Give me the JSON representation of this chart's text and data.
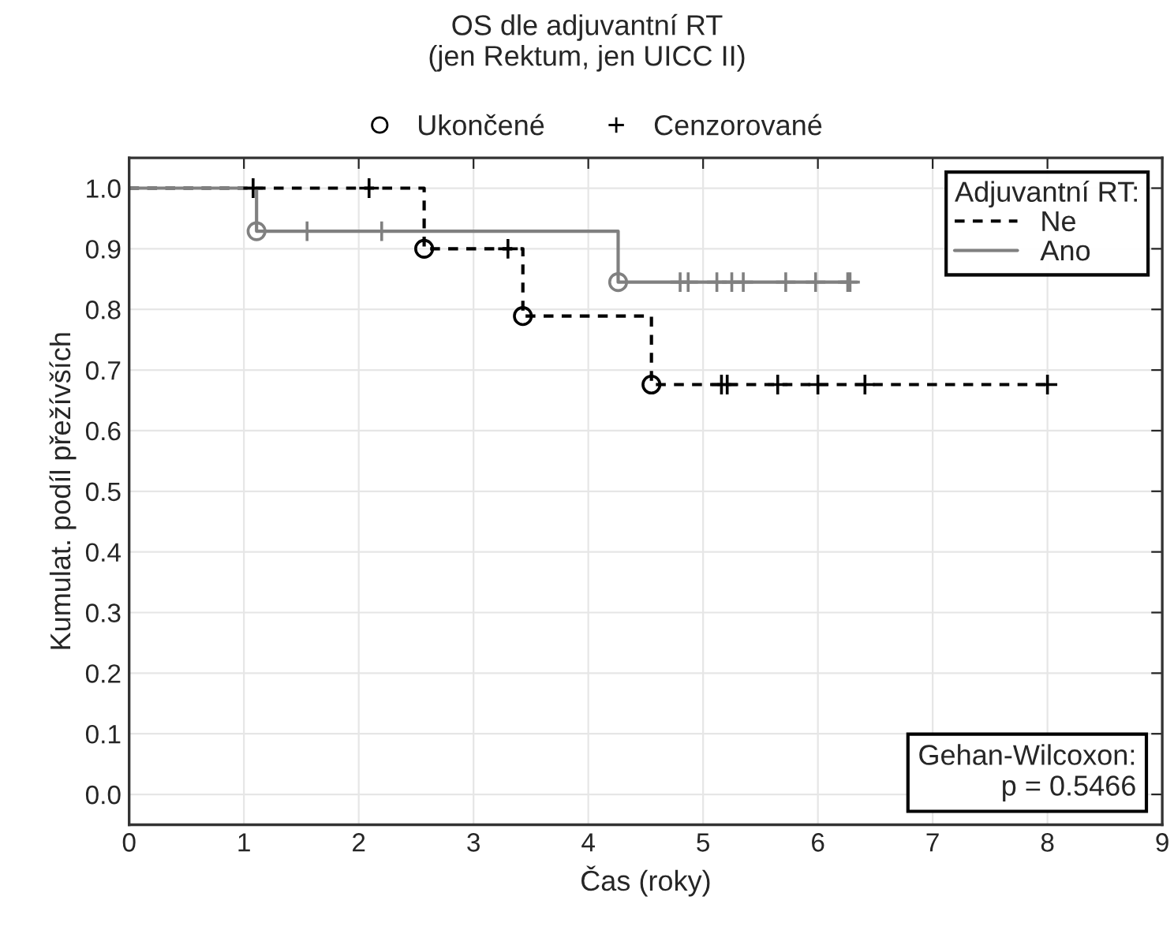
{
  "chart_data": {
    "type": "step",
    "title": "OS dle adjuvantní RT\n(jen Rektum, jen UICC II)",
    "xlabel": "Čas (roky)",
    "ylabel": "Kumulat. podíl přežívších",
    "legend_title": "Adjuvantní RT:",
    "series": [
      {
        "name": "Ne",
        "color": "#000000",
        "line_style": "dashed",
        "marker": "none",
        "x": [
          0,
          2.57,
          3.43,
          4.55,
          8.0
        ],
        "values": [
          1.0,
          0.9,
          0.789,
          0.676,
          0.676
        ]
      },
      {
        "name": "Ano",
        "color": "#808080",
        "line_style": "solid",
        "marker": "none",
        "x": [
          0,
          1.11,
          4.26,
          6.28
        ],
        "values": [
          1.0,
          0.929,
          0.845,
          0.845
        ]
      },
      {
        "name": "Ukončené",
        "type": "scatter",
        "color": "#000000",
        "marker": "circle",
        "x": [
          2.57,
          3.43,
          4.55
        ],
        "values": [
          0.9,
          0.789,
          0.676
        ]
      },
      {
        "name": "Cenzorované",
        "type": "scatter",
        "color": "#000000",
        "marker": "cross",
        "x": [
          1.08,
          2.09,
          3.3,
          5.16,
          5.21,
          5.65,
          6.0,
          6.41,
          8.0
        ],
        "values": [
          1.0,
          1.0,
          0.9,
          0.676,
          0.676,
          0.676,
          0.676,
          0.676,
          0.676
        ]
      },
      {
        "type": "scatter",
        "color": "#808080",
        "marker": "circle",
        "x": [
          1.11,
          4.26
        ],
        "values": [
          0.929,
          0.845
        ]
      },
      {
        "type": "scatter",
        "color": "#808080",
        "marker": "cross",
        "x": [
          1.55,
          2.2,
          4.8,
          4.87,
          5.12,
          5.25,
          5.35,
          5.72,
          5.98,
          6.26,
          6.28
        ],
        "values": [
          0.929,
          0.929,
          0.845,
          0.845,
          0.845,
          0.845,
          0.845,
          0.845,
          0.845,
          0.845,
          0.845
        ]
      }
    ],
    "xlim": [
      0,
      9
    ],
    "ylim": [
      -0.05,
      1.05
    ],
    "xticks": [
      0,
      1,
      2,
      3,
      4,
      5,
      6,
      7,
      8,
      9
    ],
    "yticks": [
      {
        "value": 0,
        "label": "0.0"
      },
      {
        "value": 0.1,
        "label": "0.1"
      },
      {
        "value": 0.2,
        "label": "0.2"
      },
      {
        "value": 0.3,
        "label": "0.3"
      },
      {
        "value": 0.4,
        "label": "0.4"
      },
      {
        "value": 0.5,
        "label": "0.5"
      },
      {
        "value": 0.6,
        "label": "0.6"
      },
      {
        "value": 0.7,
        "label": "0.7"
      },
      {
        "value": 0.8,
        "label": "0.8"
      },
      {
        "value": 0.9,
        "label": "0.9"
      },
      {
        "value": 1.0,
        "label": "1.0"
      }
    ],
    "grid": true,
    "legend": "top right",
    "annotations": [
      "Gehan-Wilcoxon:\np = 0.5466"
    ]
  }
}
